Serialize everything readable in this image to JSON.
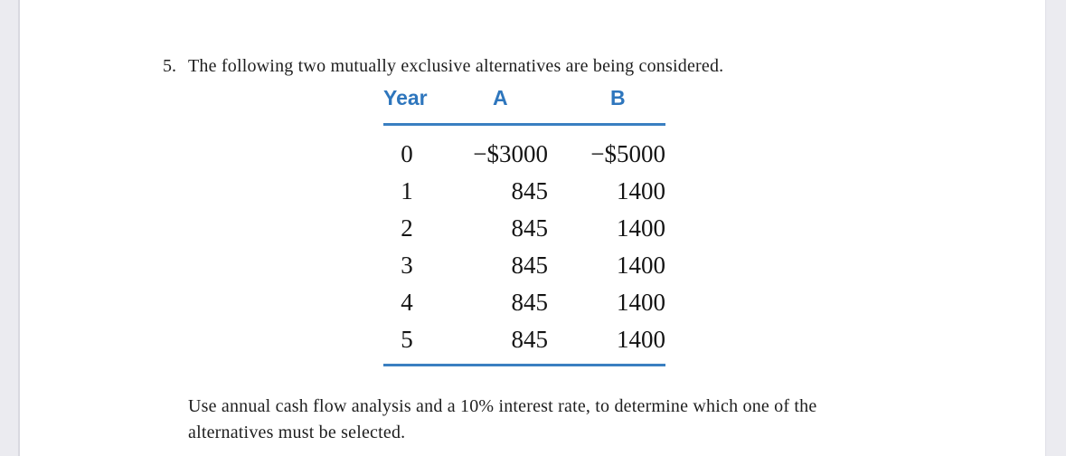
{
  "page": {
    "background": "#ffffff",
    "gutter_color": "#ebebf0",
    "accent_color": "#2e76bd"
  },
  "problem": {
    "number": "5.",
    "statement": "The following two mutually exclusive alternatives are being considered."
  },
  "table": {
    "headers": {
      "year": "Year",
      "a": "A",
      "b": "B"
    },
    "rows": [
      {
        "year": "0",
        "a": "−$3000",
        "b": "−$5000"
      },
      {
        "year": "1",
        "a": "845",
        "b": "1400"
      },
      {
        "year": "2",
        "a": "845",
        "b": "1400"
      },
      {
        "year": "3",
        "a": "845",
        "b": "1400"
      },
      {
        "year": "4",
        "a": "845",
        "b": "1400"
      },
      {
        "year": "5",
        "a": "845",
        "b": "1400"
      }
    ]
  },
  "footer": {
    "line1": "Use annual cash flow analysis and a 10% interest rate, to determine which one of the",
    "line2": "alternatives must be selected."
  }
}
